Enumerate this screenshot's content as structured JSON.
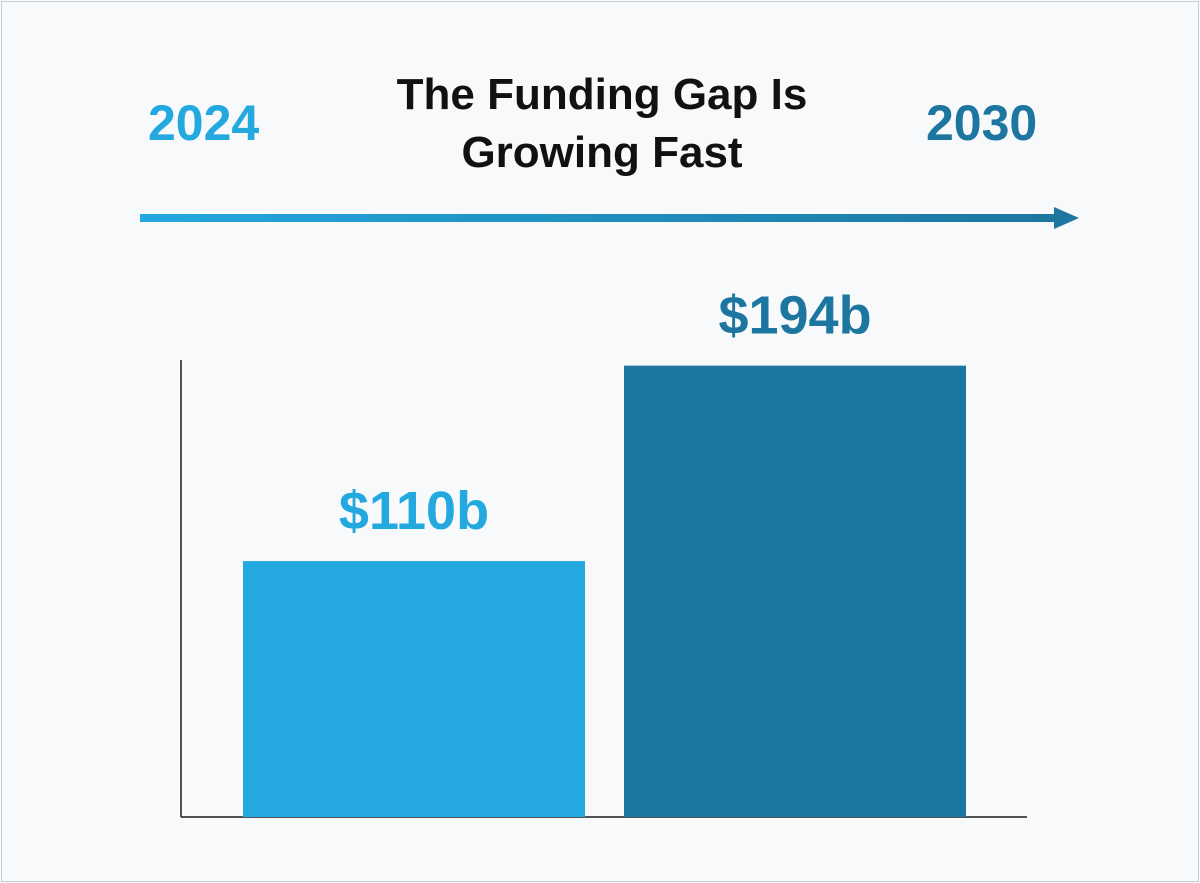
{
  "title_line1": "The Funding Gap Is",
  "title_line2": "Growing Fast",
  "timeline": {
    "start_label": "2024",
    "end_label": "2030",
    "start_color": "#23a8df",
    "end_color": "#1c769f"
  },
  "chart_data": {
    "type": "bar",
    "title": "The Funding Gap Is Growing Fast",
    "categories": [
      "2024",
      "2030"
    ],
    "values": [
      110,
      194
    ],
    "value_labels": [
      "$110b",
      "$194b"
    ],
    "colors": [
      "#23a8df",
      "#1c769f"
    ],
    "xlabel": "",
    "ylabel": "",
    "ylim": [
      0,
      245
    ],
    "grid": false,
    "legend": "none"
  }
}
